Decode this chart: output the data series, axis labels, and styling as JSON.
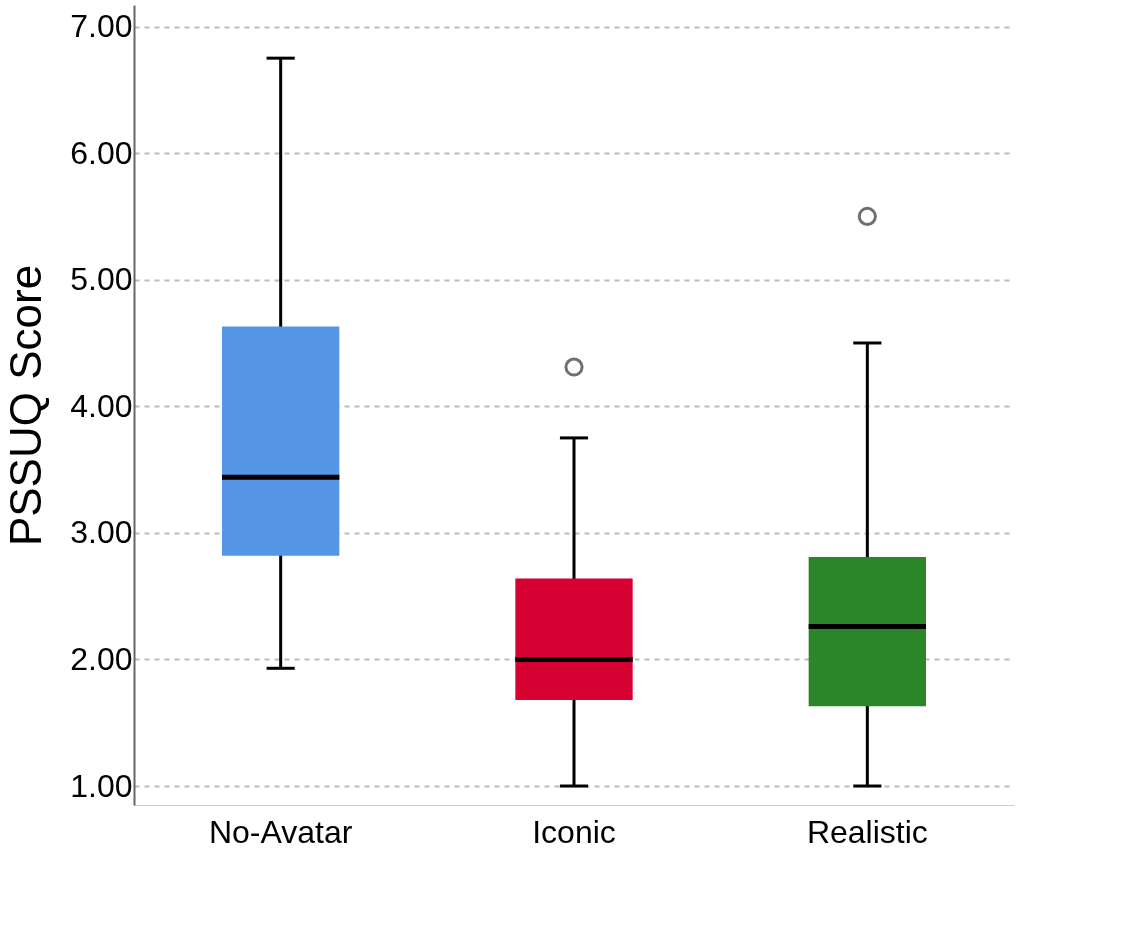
{
  "chart_data": {
    "type": "box",
    "ylabel": "PSSUQ Score",
    "categories": [
      "No-Avatar",
      "Iconic",
      "Realistic"
    ],
    "colors": [
      "#5596e6",
      "#d70032",
      "#2a8629"
    ],
    "boxes": [
      {
        "low": 1.93,
        "q1": 2.82,
        "median": 3.44,
        "q3": 4.63,
        "high": 6.75
      },
      {
        "low": 1.0,
        "q1": 1.68,
        "median": 2.0,
        "q3": 2.64,
        "high": 3.75,
        "outliers": [
          4.31
        ]
      },
      {
        "low": 1.0,
        "q1": 1.63,
        "median": 2.26,
        "q3": 2.81,
        "high": 4.5,
        "outliers": [
          5.5
        ]
      }
    ],
    "ylim": [
      0.85,
      7.17
    ],
    "yticks": [
      {
        "value": 1,
        "label": "1.00"
      },
      {
        "value": 2,
        "label": "2.00"
      },
      {
        "value": 3,
        "label": "3.00"
      },
      {
        "value": 4,
        "label": "4.00"
      },
      {
        "value": 5,
        "label": "5.00"
      },
      {
        "value": 6,
        "label": "6.00"
      },
      {
        "value": 7,
        "label": "7.00"
      }
    ],
    "grid": "y"
  }
}
